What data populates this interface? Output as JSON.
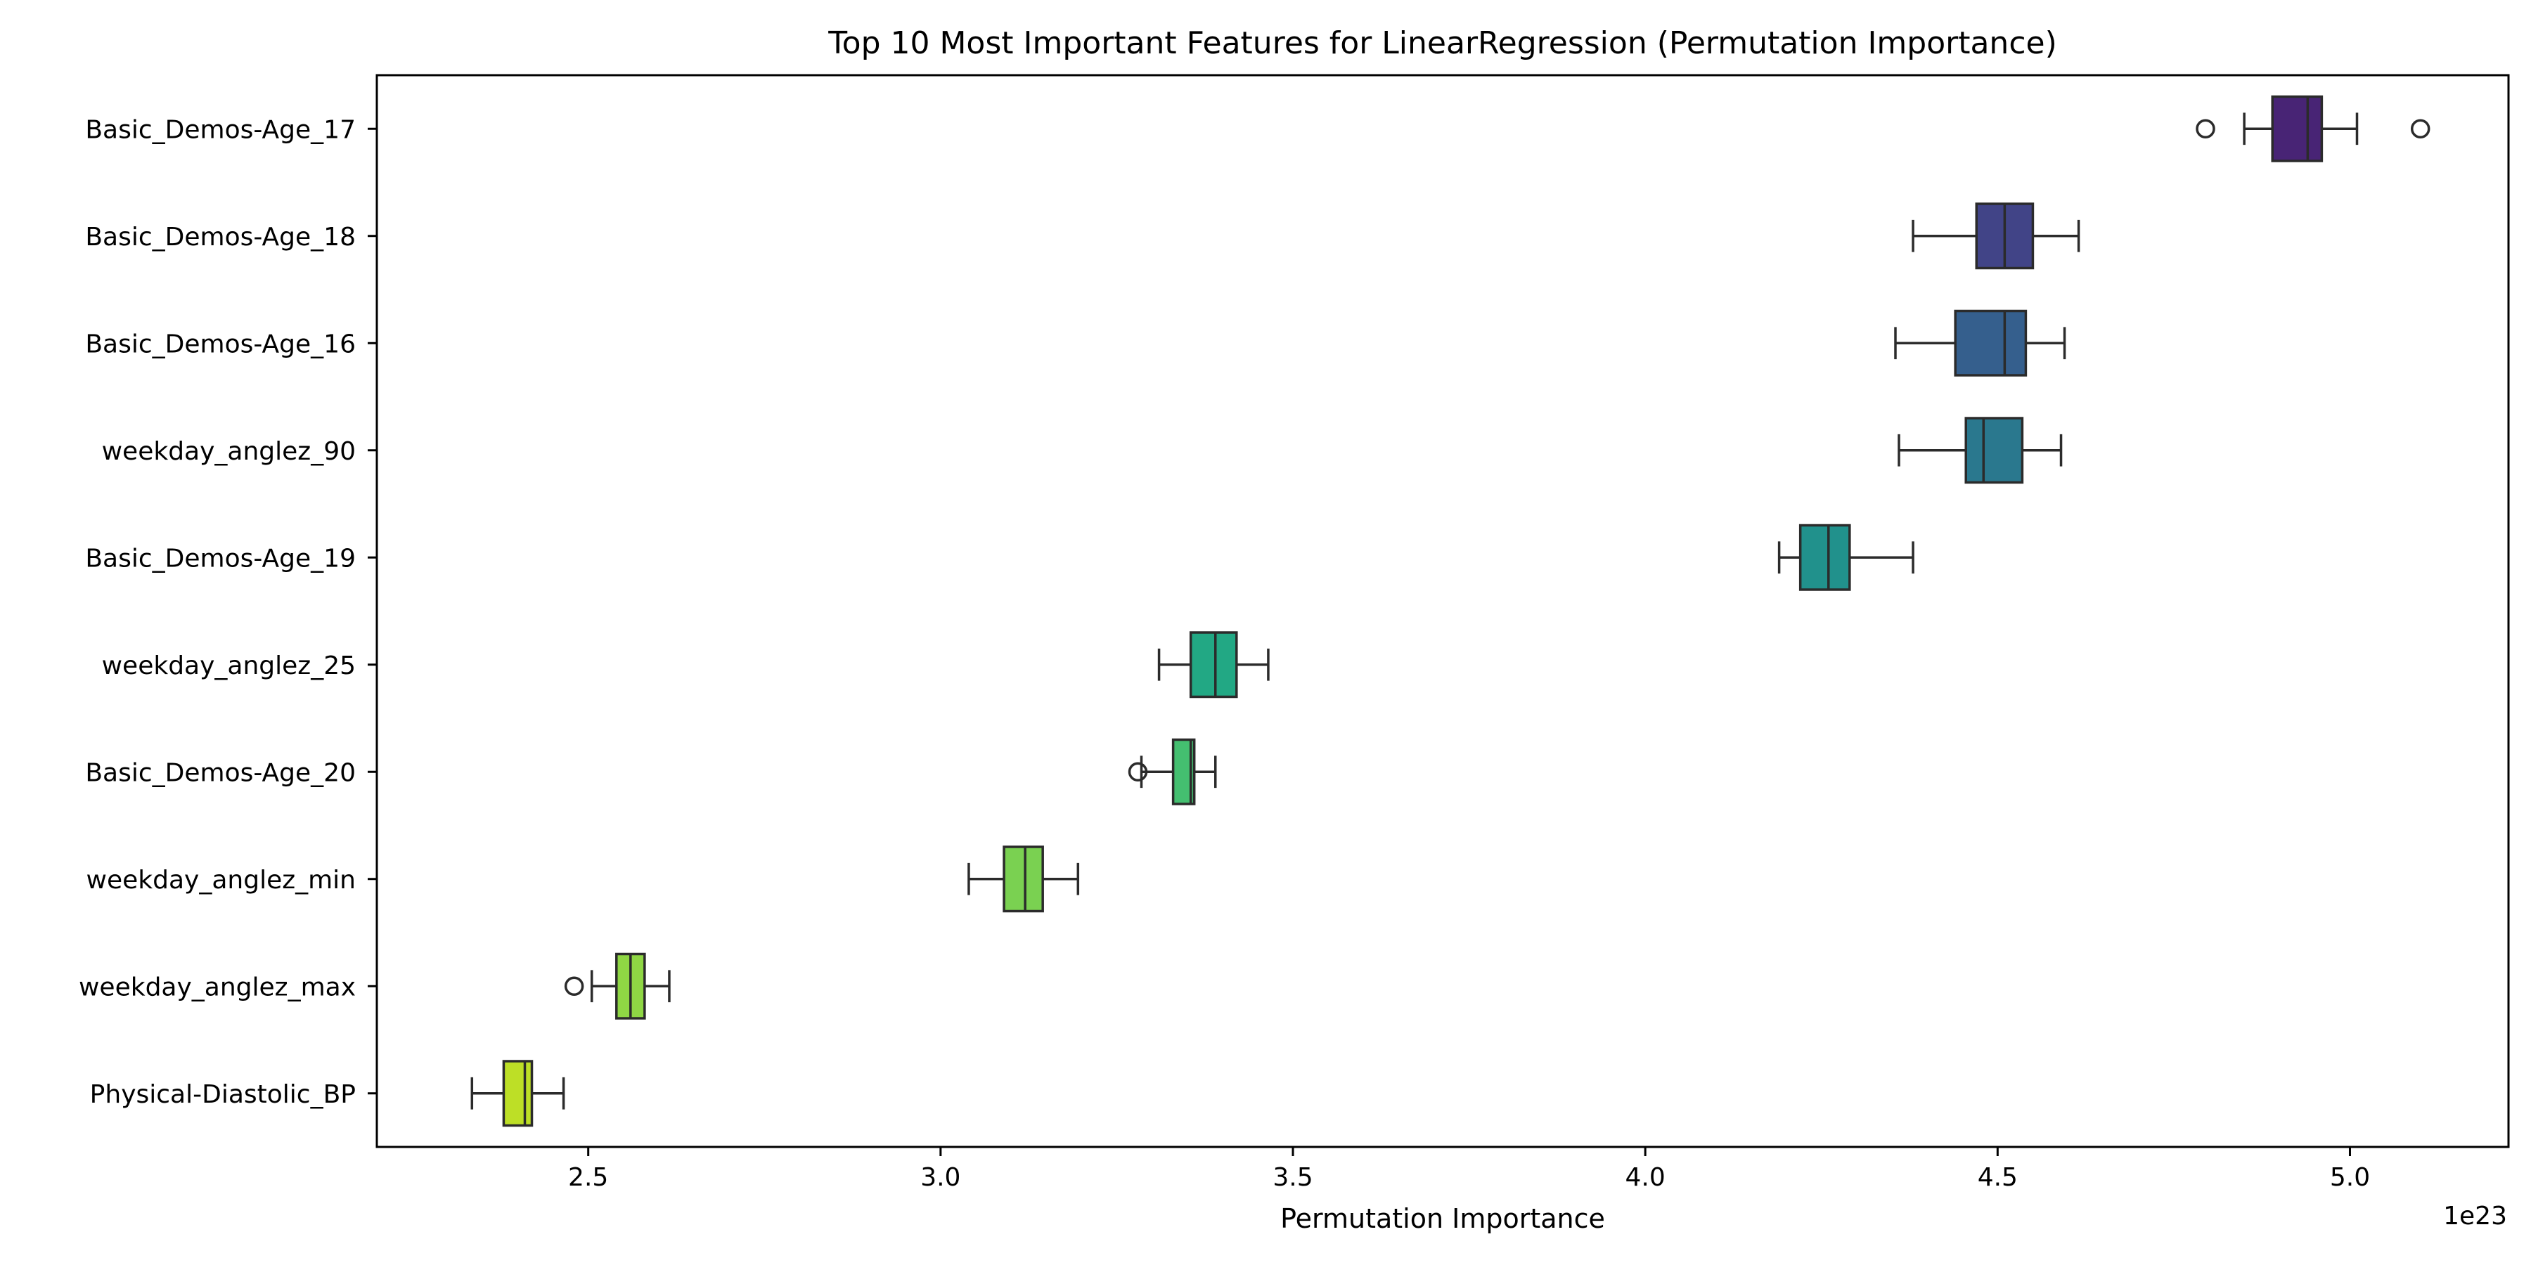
{
  "chart_data": {
    "type": "boxplot",
    "orientation": "horizontal",
    "title": "Top 10 Most Important Features for LinearRegression (Permutation Importance)",
    "xlabel": "Permutation Importance",
    "ylabel": "",
    "x_offset_label": "1e23",
    "x_multiplier": 1e+23,
    "xlim": [
      2.2,
      5.225
    ],
    "xticks": [
      2.5,
      3.0,
      3.5,
      4.0,
      4.5,
      5.0
    ],
    "xtick_labels": [
      "2.5",
      "3.0",
      "3.5",
      "4.0",
      "4.5",
      "5.0"
    ],
    "grid": false,
    "legend": "none",
    "features": [
      {
        "label": "Basic_Demos-Age_17",
        "whisker_low": 4.85,
        "q1": 4.89,
        "median": 4.94,
        "q3": 4.96,
        "whisker_high": 5.01,
        "outliers": [
          4.795,
          5.1
        ],
        "color": "#482475"
      },
      {
        "label": "Basic_Demos-Age_18",
        "whisker_low": 4.38,
        "q1": 4.47,
        "median": 4.51,
        "q3": 4.55,
        "whisker_high": 4.615,
        "outliers": [],
        "color": "#414487"
      },
      {
        "label": "Basic_Demos-Age_16",
        "whisker_low": 4.355,
        "q1": 4.44,
        "median": 4.51,
        "q3": 4.54,
        "whisker_high": 4.595,
        "outliers": [],
        "color": "#355f8d"
      },
      {
        "label": "weekday_anglez_90",
        "whisker_low": 4.36,
        "q1": 4.455,
        "median": 4.48,
        "q3": 4.535,
        "whisker_high": 4.59,
        "outliers": [],
        "color": "#2a788e"
      },
      {
        "label": "Basic_Demos-Age_19",
        "whisker_low": 4.19,
        "q1": 4.22,
        "median": 4.26,
        "q3": 4.29,
        "whisker_high": 4.38,
        "outliers": [],
        "color": "#21918c"
      },
      {
        "label": "weekday_anglez_25",
        "whisker_low": 3.31,
        "q1": 3.355,
        "median": 3.39,
        "q3": 3.42,
        "whisker_high": 3.465,
        "outliers": [],
        "color": "#22a884"
      },
      {
        "label": "Basic_Demos-Age_20",
        "whisker_low": 3.285,
        "q1": 3.33,
        "median": 3.355,
        "q3": 3.36,
        "whisker_high": 3.39,
        "outliers": [
          3.28
        ],
        "color": "#44bf70"
      },
      {
        "label": "weekday_anglez_min",
        "whisker_low": 3.04,
        "q1": 3.09,
        "median": 3.12,
        "q3": 3.145,
        "whisker_high": 3.195,
        "outliers": [],
        "color": "#7ad151"
      },
      {
        "label": "weekday_anglez_max",
        "whisker_low": 2.505,
        "q1": 2.54,
        "median": 2.56,
        "q3": 2.58,
        "whisker_high": 2.615,
        "outliers": [
          2.48
        ],
        "color": "#8fd744"
      },
      {
        "label": "Physical-Diastolic_BP",
        "whisker_low": 2.335,
        "q1": 2.38,
        "median": 2.41,
        "q3": 2.42,
        "whisker_high": 2.465,
        "outliers": [],
        "color": "#bddf26"
      }
    ]
  }
}
